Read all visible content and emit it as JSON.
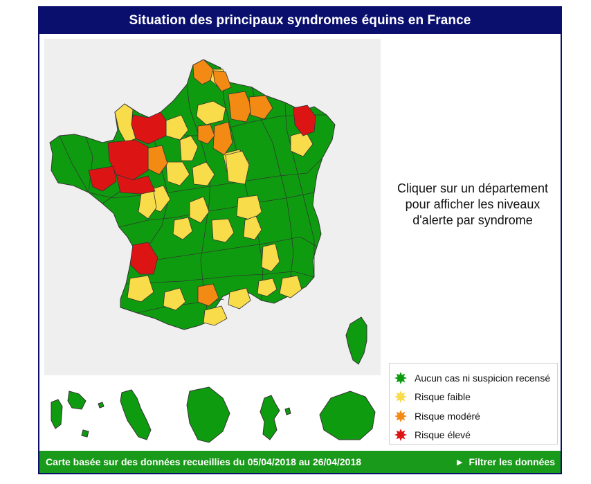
{
  "header": {
    "title": "Situation des principaux syndromes équins en France"
  },
  "instructions": {
    "text_line1": "Cliquer sur un département",
    "text_line2": "pour afficher les niveaux",
    "text_line3": "d'alerte par syndrome"
  },
  "legend": {
    "items": [
      {
        "label": "Aucun cas ni suspicion recensé",
        "color": "#0f9b0f",
        "icon": "starburst-icon"
      },
      {
        "label": "Risque faible",
        "color": "#f8dc4a",
        "icon": "starburst-icon"
      },
      {
        "label": "Risque modéré",
        "color": "#f28a14",
        "icon": "starburst-icon"
      },
      {
        "label": "Risque élevé",
        "color": "#dd1414",
        "icon": "starburst-icon"
      }
    ]
  },
  "map": {
    "background": "#efefef",
    "border_color": "#333333",
    "colors": {
      "green": "#0f9b0f",
      "yellow": "#f8dc4a",
      "orange": "#f28a14",
      "red": "#dd1414"
    }
  },
  "footer": {
    "date_range_text": "Carte basée sur des données recueillies du 05/04/2018 au 26/04/2018",
    "filter_label": "Filtrer les données",
    "filter_icon": "play-triangle-icon"
  }
}
